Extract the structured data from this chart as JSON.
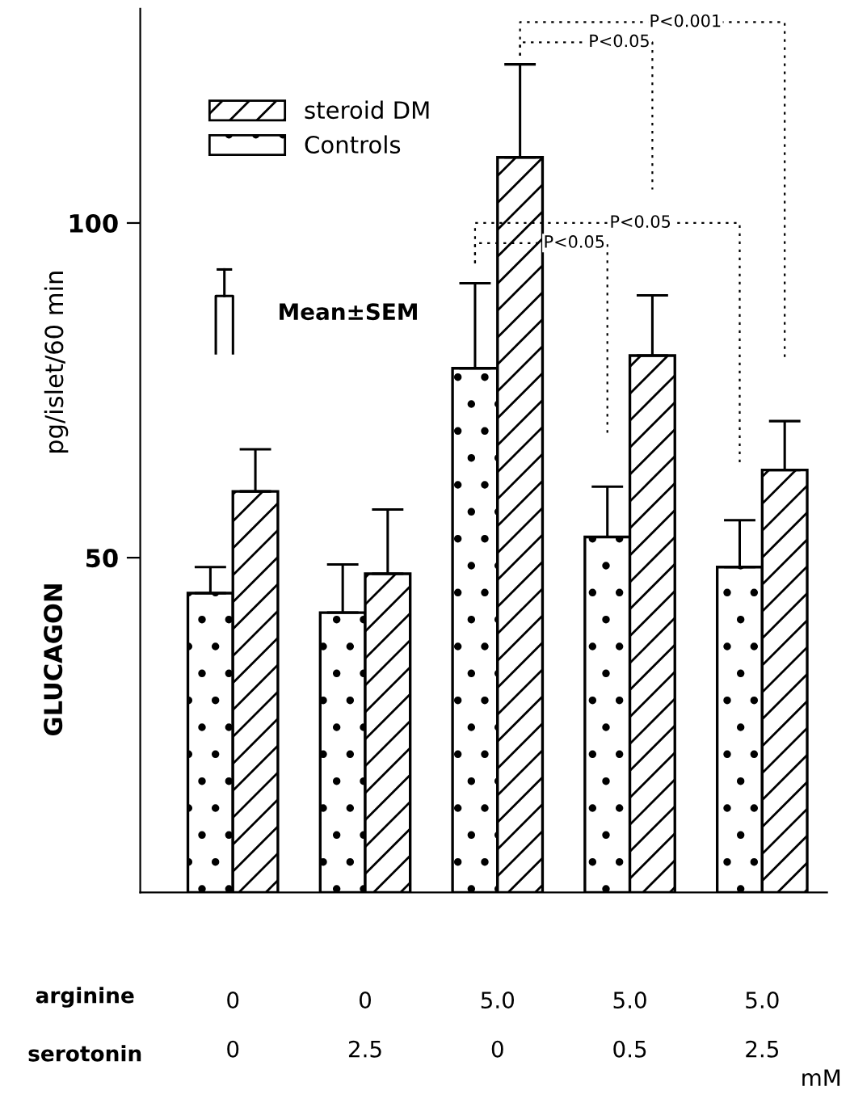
{
  "chart_data": {
    "type": "bar",
    "ylabel": "pg/islet/60 min",
    "categories": [
      "0\n0",
      "0\n2.5",
      "5.0\n0",
      "5.0\n0.5",
      "5.0\n2.5"
    ],
    "series": [
      {
        "name": "Controls",
        "color": "#000000",
        "values": [
          44.7,
          41.8,
          78.3,
          53.1,
          48.6
        ],
        "errors": [
          [
            44.7,
            48.6
          ],
          [
            41.8,
            49
          ],
          [
            78.3,
            91
          ],
          [
            53.1,
            60.6
          ],
          [
            48.6,
            55.6
          ]
        ]
      },
      {
        "name": "steroid DM",
        "color": "#000000",
        "values": [
          59.9,
          47.6,
          109.8,
          80.2,
          63.1
        ],
        "errors": [
          [
            59.9,
            66.2
          ],
          [
            47.6,
            57.2
          ],
          [
            109.8,
            123.7
          ],
          [
            80.2,
            89.2
          ],
          [
            63.1,
            70.4
          ]
        ]
      }
    ],
    "ylim": [
      0,
      132
    ],
    "yticks": [
      50,
      100
    ],
    "grid": false,
    "legend": "top left",
    "annotations": [
      "GLUCAGON",
      "Mean±SEM",
      "arginine",
      "serotonin",
      "mM",
      "P<0.001",
      "P<0.05",
      "P<0.05",
      "P<0.05"
    ]
  }
}
